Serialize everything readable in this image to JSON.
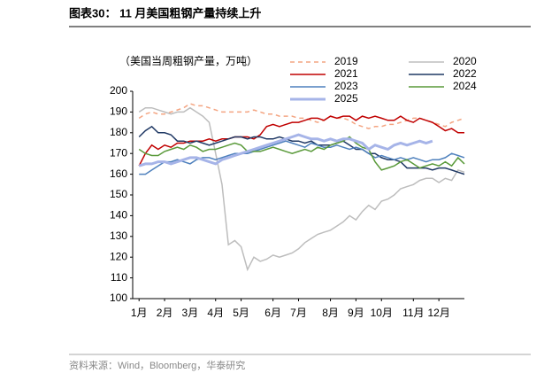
{
  "chart_data": {
    "type": "line",
    "title": "图表30： 11 月美国粗钢产量持续上升",
    "subtitle": "（美国当周粗钢产量，万吨）",
    "source": "资料来源：Wind，Bloomberg，华泰研究",
    "x": [
      1,
      2,
      3,
      4,
      5,
      6,
      7,
      8,
      9,
      10,
      11,
      12,
      13,
      14,
      15,
      16,
      17,
      18,
      19,
      20,
      21,
      22,
      23,
      24,
      25,
      26,
      27,
      28,
      29,
      30,
      31,
      32,
      33,
      34,
      35,
      36,
      37,
      38,
      39,
      40,
      41,
      42,
      43,
      44,
      45,
      46,
      47,
      48,
      49,
      50,
      51,
      52
    ],
    "xlim": [
      0,
      52
    ],
    "xticks": [
      {
        "value": 1,
        "label": "1月"
      },
      {
        "value": 5,
        "label": "2月"
      },
      {
        "value": 9,
        "label": "3月"
      },
      {
        "value": 13,
        "label": "4月"
      },
      {
        "value": 17,
        "label": "5月"
      },
      {
        "value": 22,
        "label": "6月"
      },
      {
        "value": 26,
        "label": "7月"
      },
      {
        "value": 31,
        "label": "8月"
      },
      {
        "value": 35,
        "label": "9月"
      },
      {
        "value": 39,
        "label": "10月"
      },
      {
        "value": 44,
        "label": "11月"
      },
      {
        "value": 48,
        "label": "12月"
      }
    ],
    "ylim": [
      100,
      200
    ],
    "yticks": [
      100,
      110,
      120,
      130,
      140,
      150,
      160,
      170,
      180,
      190,
      200
    ],
    "series": [
      {
        "name": "2019",
        "color": "#f4a582",
        "linestyle": "dashed",
        "linewidth": 1.5,
        "values": [
          187,
          189,
          190,
          189,
          189,
          190,
          191,
          192,
          194,
          193,
          193,
          192,
          191,
          190,
          190,
          190,
          190,
          190,
          191,
          190,
          189,
          189,
          188,
          188,
          188,
          187,
          187,
          186,
          185,
          186,
          188,
          187,
          187,
          186,
          184,
          183,
          182,
          183,
          183,
          184,
          184,
          185,
          186,
          187,
          187,
          186,
          185,
          184,
          183,
          185,
          186,
          187
        ]
      },
      {
        "name": "2020",
        "color": "#bdbdbd",
        "linestyle": "solid",
        "linewidth": 1.5,
        "values": [
          190,
          192,
          192,
          191,
          190,
          189,
          190,
          190,
          192,
          190,
          188,
          185,
          170,
          155,
          126,
          128,
          125,
          114,
          120,
          118,
          119,
          121,
          120,
          121,
          122,
          124,
          127,
          129,
          131,
          132,
          133,
          135,
          137,
          140,
          138,
          142,
          145,
          143,
          147,
          148,
          150,
          153,
          154,
          155,
          157,
          158,
          158,
          156,
          158,
          157,
          162,
          161
        ]
      },
      {
        "name": "2021",
        "color": "#c00000",
        "linestyle": "solid",
        "linewidth": 1.5,
        "values": [
          164,
          170,
          174,
          172,
          174,
          173,
          175,
          175,
          176,
          176,
          176,
          177,
          176,
          177,
          177,
          178,
          178,
          178,
          177,
          179,
          183,
          184,
          183,
          184,
          185,
          185,
          186,
          187,
          187,
          186,
          188,
          187,
          188,
          188,
          186,
          188,
          187,
          188,
          187,
          186,
          186,
          188,
          186,
          185,
          187,
          186,
          185,
          183,
          181,
          182,
          180,
          180
        ]
      },
      {
        "name": "2022",
        "color": "#1f3864",
        "linestyle": "solid",
        "linewidth": 1.5,
        "values": [
          178,
          181,
          183,
          180,
          180,
          179,
          176,
          176,
          175,
          176,
          175,
          174,
          175,
          176,
          177,
          178,
          178,
          177,
          178,
          178,
          177,
          177,
          178,
          177,
          176,
          176,
          175,
          176,
          174,
          174,
          174,
          175,
          176,
          174,
          172,
          172,
          170,
          170,
          168,
          167,
          167,
          166,
          163,
          163,
          163,
          163,
          162,
          163,
          163,
          162,
          161,
          160
        ]
      },
      {
        "name": "2023",
        "color": "#4f81bd",
        "linestyle": "solid",
        "linewidth": 1.5,
        "values": [
          160,
          160,
          162,
          164,
          166,
          166,
          167,
          166,
          165,
          167,
          168,
          168,
          167,
          168,
          169,
          170,
          170,
          170,
          171,
          172,
          173,
          174,
          175,
          176,
          175,
          174,
          173,
          175,
          174,
          173,
          173,
          174,
          173,
          172,
          173,
          172,
          170,
          168,
          169,
          168,
          167,
          168,
          167,
          168,
          167,
          166,
          167,
          167,
          168,
          170,
          169,
          168
        ]
      },
      {
        "name": "2024",
        "color": "#5a9a3a",
        "linestyle": "solid",
        "linewidth": 1.5,
        "values": [
          172,
          170,
          169,
          169,
          171,
          172,
          173,
          172,
          174,
          173,
          171,
          172,
          172,
          173,
          174,
          175,
          174,
          171,
          171,
          171,
          172,
          173,
          172,
          171,
          170,
          171,
          172,
          171,
          173,
          172,
          174,
          175,
          176,
          178,
          175,
          173,
          172,
          166,
          162,
          163,
          164,
          166,
          167,
          165,
          163,
          164,
          165,
          164,
          166,
          164,
          168,
          165
        ]
      },
      {
        "name": "2025",
        "color": "#a6b4e8",
        "linestyle": "solid",
        "linewidth": 3,
        "values": [
          164,
          165,
          165,
          166,
          166,
          165,
          166,
          167,
          168,
          168,
          167,
          166,
          165,
          167,
          168,
          169,
          170,
          171,
          172,
          173,
          174,
          175,
          176,
          177,
          178,
          179,
          178,
          177,
          177,
          176,
          177,
          176,
          177,
          177,
          176,
          175,
          172,
          174,
          173,
          172,
          174,
          175,
          174,
          175,
          176,
          175,
          176,
          null,
          null,
          null,
          null,
          null
        ]
      }
    ]
  }
}
